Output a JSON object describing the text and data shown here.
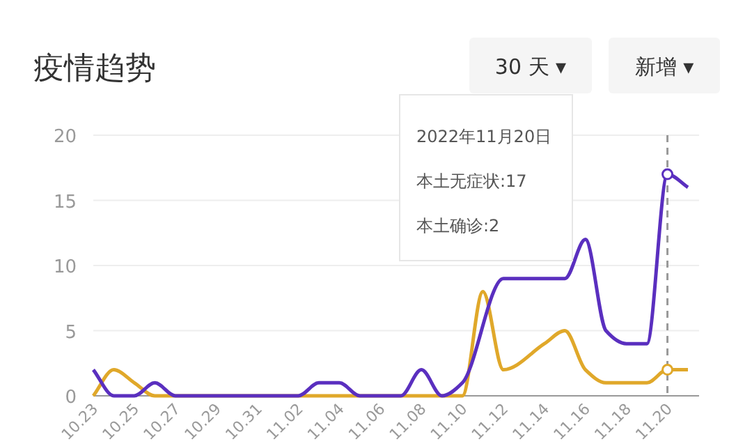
{
  "chart_data": {
    "type": "line",
    "title": "疫情趋势",
    "categories": [
      "10.23",
      null,
      "10.25",
      null,
      "10.27",
      null,
      "10.29",
      null,
      "10.31",
      null,
      "11.02",
      null,
      "11.04",
      null,
      "11.06",
      null,
      "11.08",
      null,
      "11.10",
      null,
      "11.12",
      null,
      "11.14",
      null,
      "11.16",
      null,
      "11.18",
      null,
      "11.20",
      null
    ],
    "series": [
      {
        "color": "#e0a82a",
        "values": [
          0,
          2,
          1,
          0,
          0,
          0,
          0,
          0,
          0,
          0,
          0,
          0,
          0,
          0,
          0,
          0,
          0,
          0,
          0,
          8,
          2,
          null,
          4,
          5,
          2,
          1,
          1,
          1,
          2,
          2
        ]
      },
      {
        "color": "#5a2fbf",
        "values": [
          2,
          0,
          0,
          1,
          0,
          0,
          0,
          0,
          0,
          0,
          0,
          1,
          1,
          0,
          0,
          0,
          2,
          0,
          1,
          null,
          9,
          null,
          9,
          9,
          12,
          5,
          4,
          4,
          17,
          16
        ]
      }
    ],
    "ylim": [
      0,
      20
    ],
    "yticks": [
      0,
      5,
      10,
      15,
      20
    ],
    "grid": "y",
    "ref_lines": [
      {
        "axis": "x",
        "value": "11.20",
        "color": "#999999",
        "line_style": "dashed"
      }
    ],
    "annotations": [
      "30 天 ▾",
      "新增 ▾",
      "2022年11月20日",
      "本土无症状:17",
      "本土确诊:2"
    ]
  }
}
